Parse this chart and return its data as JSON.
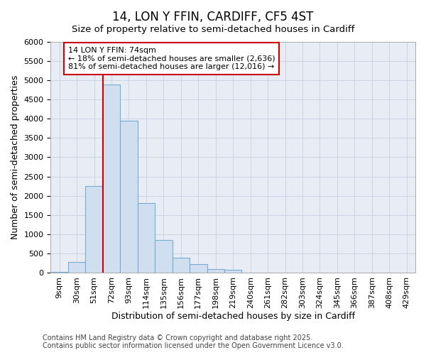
{
  "title": "14, LON Y FFIN, CARDIFF, CF5 4ST",
  "subtitle": "Size of property relative to semi-detached houses in Cardiff",
  "xlabel": "Distribution of semi-detached houses by size in Cardiff",
  "ylabel": "Number of semi-detached properties",
  "categories": [
    "9sqm",
    "30sqm",
    "51sqm",
    "72sqm",
    "93sqm",
    "114sqm",
    "135sqm",
    "156sqm",
    "177sqm",
    "198sqm",
    "219sqm",
    "240sqm",
    "261sqm",
    "282sqm",
    "303sqm",
    "324sqm",
    "345sqm",
    "366sqm",
    "387sqm",
    "408sqm",
    "429sqm"
  ],
  "values": [
    10,
    280,
    2250,
    4900,
    3950,
    1800,
    850,
    380,
    230,
    100,
    80,
    0,
    0,
    0,
    0,
    0,
    0,
    0,
    0,
    0,
    0
  ],
  "bar_color": "#d0dff0",
  "bar_edge_color": "#7aaad0",
  "vline_x_index": 3,
  "vline_color": "#cc0000",
  "annotation_text": "14 LON Y FFIN: 74sqm\n← 18% of semi-detached houses are smaller (2,636)\n81% of semi-detached houses are larger (12,016) →",
  "annotation_box_color": "#ffffff",
  "annotation_box_edge": "#cc0000",
  "ylim": [
    0,
    6000
  ],
  "yticks": [
    0,
    500,
    1000,
    1500,
    2000,
    2500,
    3000,
    3500,
    4000,
    4500,
    5000,
    5500,
    6000
  ],
  "grid_color": "#c8d0e0",
  "bg_color": "#e8edf5",
  "footer_text": "Contains HM Land Registry data © Crown copyright and database right 2025.\nContains public sector information licensed under the Open Government Licence v3.0.",
  "title_fontsize": 12,
  "subtitle_fontsize": 9.5,
  "label_fontsize": 9,
  "tick_fontsize": 8,
  "footer_fontsize": 7,
  "annotation_fontsize": 8
}
